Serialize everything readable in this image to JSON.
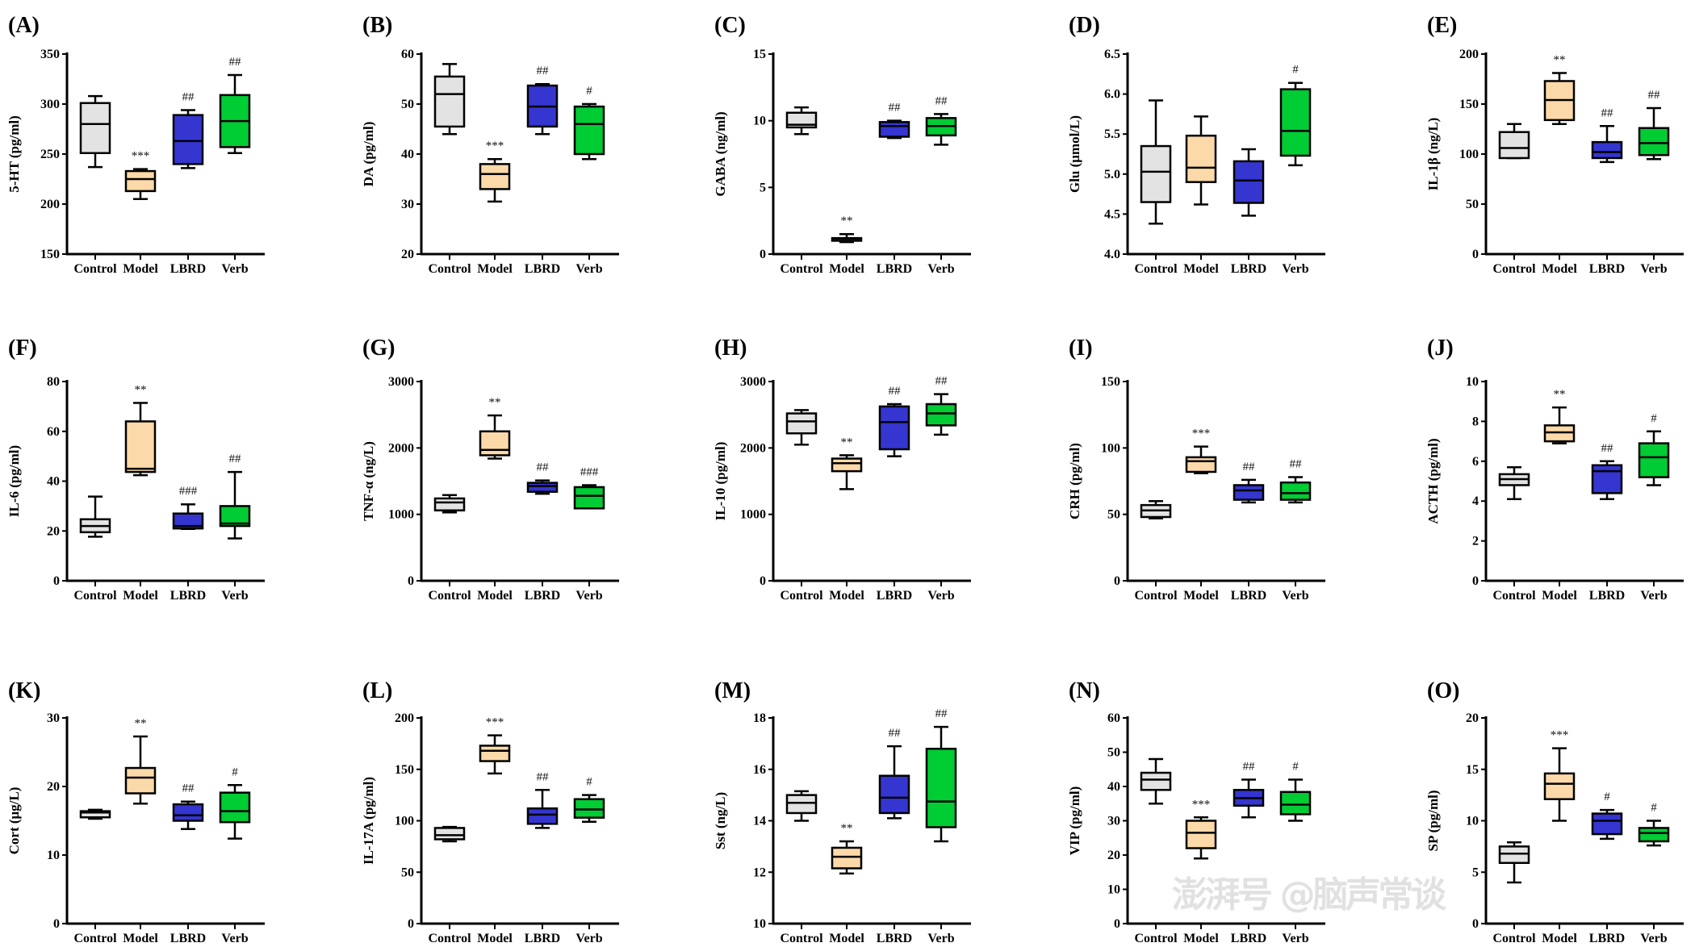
{
  "colors": {
    "Control": "#e3e3e3",
    "Model": "#fcd9a8",
    "LBRD": "#3535d0",
    "Verb": "#00cc33"
  },
  "watermark": "澎湃号 @脑声常谈",
  "chart_data": [
    {
      "panel": "(A)",
      "type": "box",
      "ylabel": "5-HT (pg/ml)",
      "ylim": [
        150,
        350
      ],
      "yticks": [
        "150",
        "200",
        "250",
        "300",
        "350"
      ],
      "categories": [
        "Control",
        "Model",
        "LBRD",
        "Verb"
      ],
      "boxes": [
        [
          237,
          251,
          280,
          301,
          308
        ],
        [
          205,
          213,
          225,
          233,
          235
        ],
        [
          236,
          240,
          263,
          289,
          294
        ],
        [
          251,
          257,
          283,
          309,
          329
        ]
      ],
      "annotations": [
        "",
        "***",
        "##",
        "##"
      ]
    },
    {
      "panel": "(B)",
      "type": "box",
      "ylabel": "DA (pg/ml)",
      "ylim": [
        20,
        60
      ],
      "yticks": [
        "20",
        "30",
        "40",
        "50",
        "60"
      ],
      "categories": [
        "Control",
        "Model",
        "LBRD",
        "Verb"
      ],
      "boxes": [
        [
          44,
          45.5,
          52,
          55.5,
          58
        ],
        [
          30.5,
          33,
          36,
          38,
          39
        ],
        [
          44,
          45.5,
          49.5,
          53.7,
          54
        ],
        [
          39,
          40,
          46,
          49.5,
          50
        ]
      ],
      "annotations": [
        "",
        "***",
        "##",
        "#"
      ]
    },
    {
      "panel": "(C)",
      "type": "box",
      "ylabel": "GABA (ng/ml)",
      "ylim": [
        0,
        15
      ],
      "yticks": [
        "0",
        "5",
        "10",
        "15"
      ],
      "categories": [
        "Control",
        "Model",
        "LBRD",
        "Verb"
      ],
      "boxes": [
        [
          9,
          9.5,
          9.7,
          10.6,
          11
        ],
        [
          0.9,
          1.0,
          1.15,
          1.2,
          1.5
        ],
        [
          8.7,
          8.8,
          9.6,
          9.9,
          10
        ],
        [
          8.2,
          8.9,
          9.6,
          10.2,
          10.5
        ]
      ],
      "annotations": [
        "",
        "**",
        "##",
        "##"
      ]
    },
    {
      "panel": "(D)",
      "type": "box",
      "ylabel": "Glu (μmol/L)",
      "ylim": [
        4.0,
        6.5
      ],
      "yticks": [
        "4.0",
        "4.5",
        "5.0",
        "5.5",
        "6.0",
        "6.5"
      ],
      "categories": [
        "Control",
        "Model",
        "LBRD",
        "Verb"
      ],
      "boxes": [
        [
          4.38,
          4.65,
          5.03,
          5.35,
          5.92
        ],
        [
          4.62,
          4.9,
          5.08,
          5.48,
          5.72
        ],
        [
          4.48,
          4.64,
          4.92,
          5.16,
          5.31
        ],
        [
          5.11,
          5.23,
          5.54,
          6.06,
          6.14
        ]
      ],
      "annotations": [
        "",
        "",
        "",
        "#"
      ]
    },
    {
      "panel": "(E)",
      "type": "box",
      "ylabel": "IL-1β (ng/L)",
      "ylim": [
        0,
        200
      ],
      "yticks": [
        "0",
        "50",
        "100",
        "150",
        "200"
      ],
      "categories": [
        "Control",
        "Model",
        "LBRD",
        "Verb"
      ],
      "boxes": [
        [
          96,
          96,
          106,
          122,
          130
        ],
        [
          130,
          134,
          154,
          173,
          181
        ],
        [
          92,
          96,
          102,
          112,
          128
        ],
        [
          95,
          99,
          111,
          126,
          146
        ]
      ],
      "annotations": [
        "",
        "**",
        "##",
        "##"
      ]
    },
    {
      "panel": "(F)",
      "type": "box",
      "ylabel": "IL-6 (pg/ml)",
      "ylim": [
        0,
        80
      ],
      "yticks": [
        "0",
        "20",
        "40",
        "60",
        "80"
      ],
      "categories": [
        "Control",
        "Model",
        "LBRD",
        "Verb"
      ],
      "boxes": [
        [
          17.7,
          19.5,
          22,
          24.7,
          33.8
        ],
        [
          42.4,
          43.7,
          45,
          64,
          71.4
        ],
        [
          20.8,
          21,
          22,
          27,
          30.7
        ],
        [
          17,
          22,
          23,
          30,
          43.7
        ]
      ],
      "annotations": [
        "",
        "**",
        "###",
        "##"
      ]
    },
    {
      "panel": "(G)",
      "type": "box",
      "ylabel": "TNF-α (ng/L)",
      "ylim": [
        0,
        3000
      ],
      "yticks": [
        "0",
        "1000",
        "2000",
        "3000"
      ],
      "categories": [
        "Control",
        "Model",
        "LBRD",
        "Verb"
      ],
      "boxes": [
        [
          1030,
          1060,
          1180,
          1240,
          1290
        ],
        [
          1840,
          1890,
          1970,
          2250,
          2490
        ],
        [
          1310,
          1340,
          1425,
          1475,
          1510
        ],
        [
          1090,
          1090,
          1280,
          1410,
          1440
        ]
      ],
      "annotations": [
        "",
        "**",
        "##",
        "###"
      ]
    },
    {
      "panel": "(H)",
      "type": "box",
      "ylabel": "IL-10 (pg/ml)",
      "ylim": [
        0,
        3000
      ],
      "yticks": [
        "0",
        "1000",
        "2000",
        "3000"
      ],
      "categories": [
        "Control",
        "Model",
        "LBRD",
        "Verb"
      ],
      "boxes": [
        [
          2050,
          2220,
          2400,
          2520,
          2570
        ],
        [
          1380,
          1650,
          1770,
          1840,
          1890
        ],
        [
          1875,
          1980,
          2390,
          2625,
          2660
        ],
        [
          2200,
          2340,
          2520,
          2660,
          2810
        ]
      ],
      "annotations": [
        "",
        "**",
        "##",
        "##"
      ]
    },
    {
      "panel": "(I)",
      "type": "box",
      "ylabel": "CRH (pg/ml)",
      "ylim": [
        0,
        150
      ],
      "yticks": [
        "0",
        "50",
        "100",
        "150"
      ],
      "categories": [
        "Control",
        "Model",
        "LBRD",
        "Verb"
      ],
      "boxes": [
        [
          47,
          48,
          53,
          57,
          60
        ],
        [
          81,
          82,
          90,
          93,
          101
        ],
        [
          59,
          61,
          68,
          72,
          76
        ],
        [
          59,
          61,
          66,
          74,
          78
        ]
      ],
      "annotations": [
        "",
        "***",
        "##",
        "##"
      ]
    },
    {
      "panel": "(J)",
      "type": "box",
      "ylabel": "ACTH (pg/ml)",
      "ylim": [
        0,
        10
      ],
      "yticks": [
        "0",
        "2",
        "4",
        "6",
        "8",
        "10"
      ],
      "categories": [
        "Control",
        "Model",
        "LBRD",
        "Verb"
      ],
      "boxes": [
        [
          4.1,
          4.8,
          5.1,
          5.35,
          5.7
        ],
        [
          6.9,
          7.0,
          7.45,
          7.8,
          8.7
        ],
        [
          4.1,
          4.4,
          5.5,
          5.8,
          6.0
        ],
        [
          4.8,
          5.2,
          6.2,
          6.9,
          7.5
        ]
      ],
      "annotations": [
        "",
        "**",
        "##",
        "#"
      ]
    },
    {
      "panel": "(K)",
      "type": "box",
      "ylabel": "Cort (μg/L)",
      "ylim": [
        0,
        30
      ],
      "yticks": [
        "0",
        "10",
        "20",
        "30"
      ],
      "categories": [
        "Control",
        "Model",
        "LBRD",
        "Verb"
      ],
      "boxes": [
        [
          15.3,
          15.5,
          16.2,
          16.4,
          16.6
        ],
        [
          17.5,
          19,
          21.3,
          22.7,
          27.3
        ],
        [
          13.8,
          15,
          15.8,
          17.4,
          17.8
        ],
        [
          12.4,
          14.8,
          16.4,
          19.1,
          20.2
        ]
      ],
      "annotations": [
        "",
        "**",
        "##",
        "#"
      ]
    },
    {
      "panel": "(L)",
      "type": "box",
      "ylabel": "IL-17A (pg/ml)",
      "ylim": [
        0,
        200
      ],
      "yticks": [
        "0",
        "50",
        "100",
        "150",
        "200"
      ],
      "categories": [
        "Control",
        "Model",
        "LBRD",
        "Verb"
      ],
      "boxes": [
        [
          80,
          82,
          86,
          93,
          94
        ],
        [
          146,
          158,
          168,
          173,
          183
        ],
        [
          93,
          97,
          106,
          112,
          130
        ],
        [
          99,
          103,
          111,
          121,
          125
        ]
      ],
      "annotations": [
        "",
        "***",
        "##",
        "#"
      ]
    },
    {
      "panel": "(M)",
      "type": "box",
      "ylabel": "Sst (ng/L)",
      "ylim": [
        10,
        18
      ],
      "yticks": [
        "10",
        "12",
        "14",
        "16",
        "18"
      ],
      "categories": [
        "Control",
        "Model",
        "LBRD",
        "Verb"
      ],
      "boxes": [
        [
          14.0,
          14.3,
          14.7,
          15.0,
          15.15
        ],
        [
          11.95,
          12.15,
          12.6,
          12.95,
          13.2
        ],
        [
          14.1,
          14.3,
          14.9,
          15.75,
          16.9
        ],
        [
          13.2,
          13.75,
          14.75,
          16.8,
          17.65
        ]
      ],
      "annotations": [
        "",
        "**",
        "##",
        "##"
      ]
    },
    {
      "panel": "(N)",
      "type": "box",
      "ylabel": "VIP (pg/ml)",
      "ylim": [
        0,
        60
      ],
      "yticks": [
        "0",
        "10",
        "20",
        "30",
        "40",
        "50",
        "60"
      ],
      "categories": [
        "Control",
        "Model",
        "LBRD",
        "Verb"
      ],
      "boxes": [
        [
          35,
          39,
          42,
          44,
          48
        ],
        [
          19,
          22,
          26.5,
          30,
          31
        ],
        [
          31,
          34.4,
          36.6,
          39,
          42
        ],
        [
          30,
          31.9,
          34.7,
          38.4,
          42
        ]
      ],
      "annotations": [
        "",
        "***",
        "##",
        "#"
      ]
    },
    {
      "panel": "(O)",
      "type": "box",
      "ylabel": "SP (pg/ml)",
      "ylim": [
        0,
        20
      ],
      "yticks": [
        "0",
        "5",
        "10",
        "15",
        "20"
      ],
      "categories": [
        "Control",
        "Model",
        "LBRD",
        "Verb"
      ],
      "boxes": [
        [
          4.0,
          5.9,
          6.8,
          7.5,
          7.9
        ],
        [
          10.0,
          12.1,
          13.6,
          14.6,
          17.05
        ],
        [
          8.25,
          8.7,
          10.0,
          10.7,
          11.05
        ],
        [
          7.6,
          8.0,
          8.8,
          9.3,
          10.0
        ]
      ],
      "annotations": [
        "",
        "***",
        "#",
        "#"
      ]
    }
  ]
}
